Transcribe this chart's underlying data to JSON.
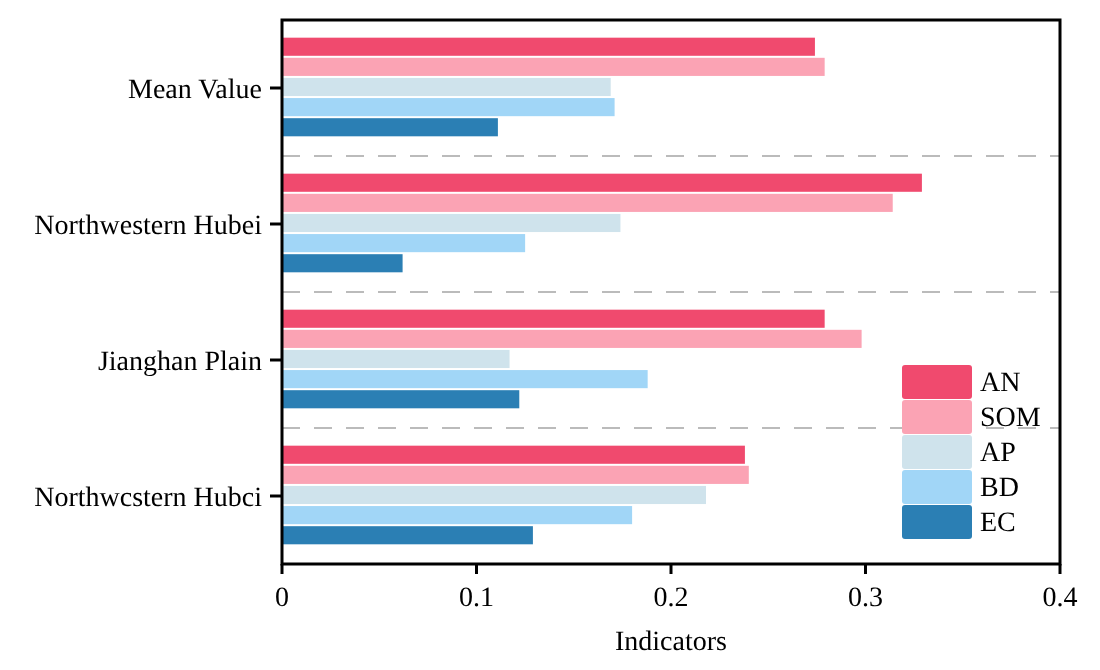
{
  "chart_data": {
    "type": "bar",
    "orientation": "horizontal",
    "xlabel": "Indicators",
    "categories": [
      "Mean Value",
      "Northwestern Hubei",
      "Jianghan Plain",
      "Northwcstern Hubci"
    ],
    "series": [
      {
        "name": "AN",
        "color": "#f04a6e",
        "values": [
          0.274,
          0.329,
          0.279,
          0.238
        ]
      },
      {
        "name": "SOM",
        "color": "#fba3b4",
        "values": [
          0.279,
          0.314,
          0.298,
          0.24
        ]
      },
      {
        "name": "AP",
        "color": "#cfe3ec",
        "values": [
          0.169,
          0.174,
          0.117,
          0.218
        ]
      },
      {
        "name": "BD",
        "color": "#a1d6f7",
        "values": [
          0.171,
          0.125,
          0.188,
          0.18
        ]
      },
      {
        "name": "EC",
        "color": "#2b7fb4",
        "values": [
          0.111,
          0.062,
          0.122,
          0.129
        ]
      }
    ],
    "xlim": [
      0,
      0.4
    ],
    "xticks": [
      0,
      0.1,
      0.2,
      0.3,
      0.4
    ],
    "legend": "bottom right",
    "grid": false
  }
}
